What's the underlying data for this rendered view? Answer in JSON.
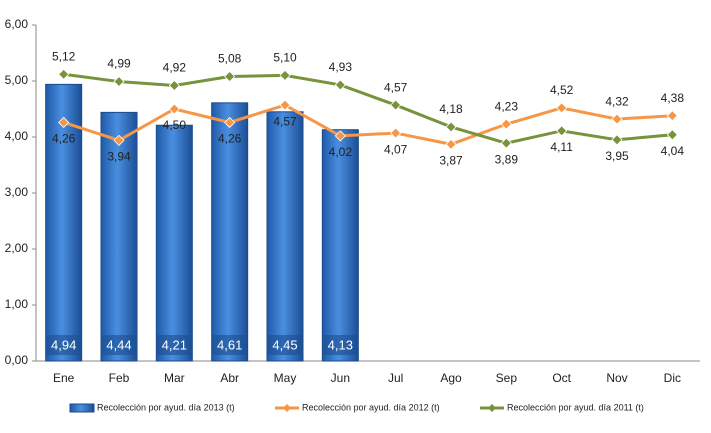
{
  "chart_data": {
    "type": "bar",
    "categories": [
      "Ene",
      "Feb",
      "Mar",
      "Abr",
      "May",
      "Jun",
      "Jul",
      "Ago",
      "Sep",
      "Oct",
      "Nov",
      "Dic"
    ],
    "series": [
      {
        "name": "Recolección por ayud. día 2013 (t)",
        "type": "bar",
        "color": "#2e6fc4",
        "values": [
          4.94,
          4.44,
          4.21,
          4.61,
          4.45,
          4.13,
          null,
          null,
          null,
          null,
          null,
          null
        ],
        "value_labels": [
          "4,94",
          "4,44",
          "4,21",
          "4,61",
          "4,45",
          "4,13",
          null,
          null,
          null,
          null,
          null,
          null
        ]
      },
      {
        "name": "Recolección por ayud. día 2012 (t)",
        "type": "line",
        "color": "#f79646",
        "values": [
          4.26,
          3.94,
          4.5,
          4.26,
          4.57,
          4.02,
          4.07,
          3.87,
          4.23,
          4.52,
          4.32,
          4.38
        ],
        "value_labels": [
          "4,26",
          "3,94",
          "4,50",
          "4,26",
          "4,57",
          "4,02",
          "4,07",
          "3,87",
          "4,23",
          "4,52",
          "4,32",
          "4,38"
        ]
      },
      {
        "name": "Recolección por ayud. día 2011 (t)",
        "type": "line",
        "color": "#77933c",
        "values": [
          5.12,
          4.99,
          4.92,
          5.08,
          5.1,
          4.93,
          4.57,
          4.18,
          3.89,
          4.11,
          3.95,
          4.04
        ],
        "value_labels": [
          "5,12",
          "4,99",
          "4,92",
          "5,08",
          "5,10",
          "4,93",
          "4,57",
          "4,18",
          "3,89",
          "4,11",
          "3,95",
          "4,04"
        ]
      }
    ],
    "ylim": [
      0,
      6
    ],
    "yticks": [
      {
        "value": 0,
        "label": "0,00"
      },
      {
        "value": 1,
        "label": "1,00"
      },
      {
        "value": 2,
        "label": "2,00"
      },
      {
        "value": 3,
        "label": "3,00"
      },
      {
        "value": 4,
        "label": "4,00"
      },
      {
        "value": 5,
        "label": "5,00"
      },
      {
        "value": 6,
        "label": "6,00"
      }
    ],
    "grid": false,
    "legend": "bottom"
  }
}
